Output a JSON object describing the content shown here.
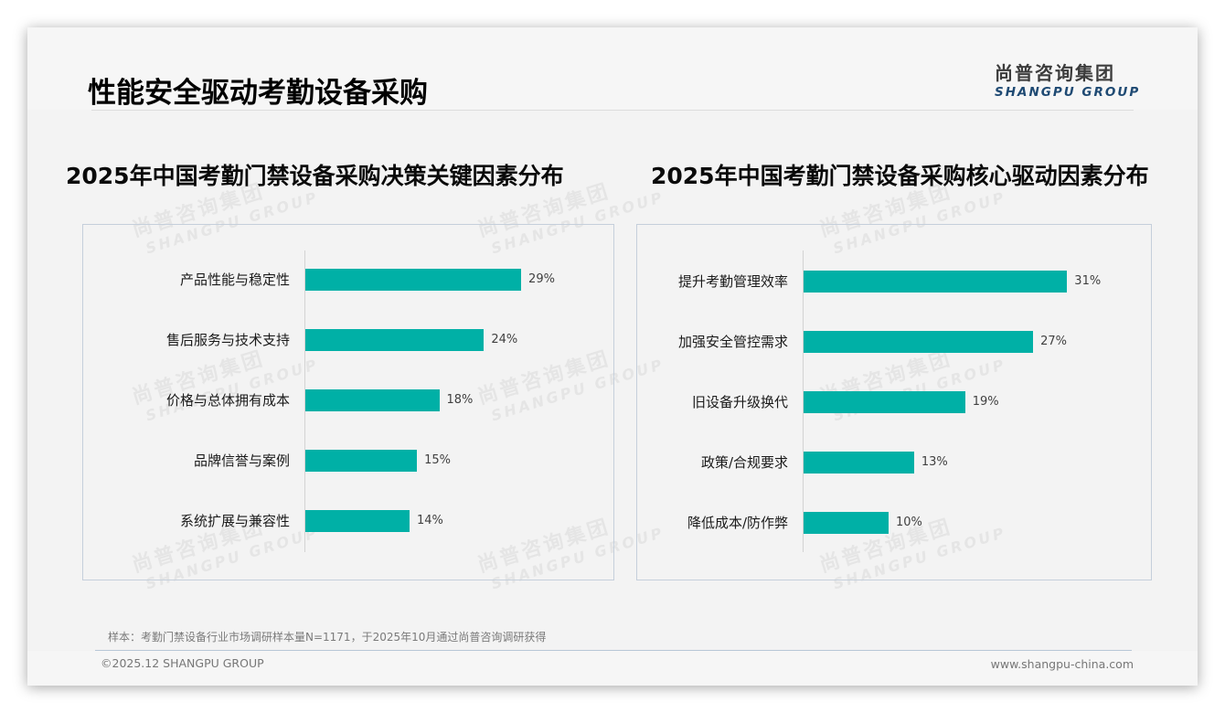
{
  "header": {
    "title": "性能安全驱动考勤设备采购",
    "logo_cn": "尚普咨询集团",
    "logo_en": "SHANGPU GROUP"
  },
  "watermark": {
    "cn": "尚普咨询集团",
    "en": "SHANGPU GROUP"
  },
  "colors": {
    "bar": "#00b0a6",
    "panel_border": "#c5cfdb",
    "logo_en": "#1f4a73"
  },
  "chart_data": [
    {
      "type": "bar",
      "orientation": "horizontal",
      "title": "2025年中国考勤门禁设备采购决策关键因素分布",
      "categories": [
        "产品性能与稳定性",
        "售后服务与技术支持",
        "价格与总体拥有成本",
        "品牌信誉与案例",
        "系统扩展与兼容性"
      ],
      "values": [
        29,
        24,
        18,
        15,
        14
      ],
      "labels": [
        "29%",
        "24%",
        "18%",
        "15%",
        "14%"
      ],
      "unit": "%",
      "xlabel": "",
      "ylabel": "",
      "grid": false,
      "legend": null
    },
    {
      "type": "bar",
      "orientation": "horizontal",
      "title": "2025年中国考勤门禁设备采购核心驱动因素分布",
      "categories": [
        "提升考勤管理效率",
        "加强安全管控需求",
        "旧设备升级换代",
        "政策/合规要求",
        "降低成本/防作弊"
      ],
      "values": [
        31,
        27,
        19,
        13,
        10
      ],
      "labels": [
        "31%",
        "27%",
        "19%",
        "13%",
        "10%"
      ],
      "unit": "%",
      "xlabel": "",
      "ylabel": "",
      "grid": false,
      "legend": null
    }
  ],
  "footer": {
    "source_note": "样本：考勤门禁设备行业市场调研样本量N=1171，于2025年10月通过尚普咨询调研获得",
    "copyright": "©2025.12 SHANGPU GROUP",
    "website": "www.shangpu-china.com"
  }
}
